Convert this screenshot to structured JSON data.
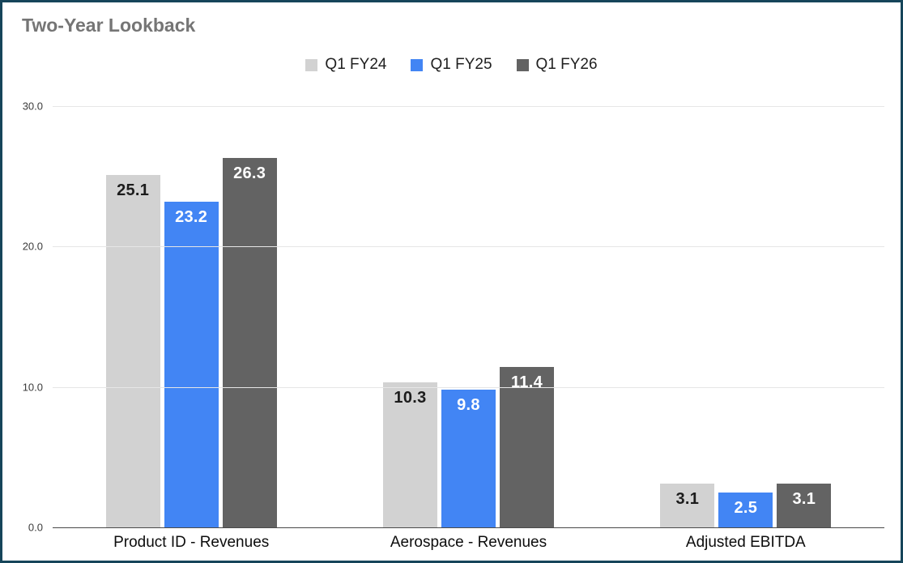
{
  "header": {
    "title": "Two-Year Lookback"
  },
  "colors": {
    "border": "#16455a",
    "title": "#757575",
    "grid": "#e6e6e6",
    "axis": "#4a4a4a",
    "tick_text": "#3c3c3c",
    "category_text": "#0d0d0d",
    "legend_text": "#1f1f1f"
  },
  "chart_data": {
    "type": "bar",
    "title": "Two-Year Lookback",
    "categories": [
      "Product ID - Revenues",
      "Aerospace - Revenues",
      "Adjusted EBITDA"
    ],
    "series": [
      {
        "name": "Q1 FY24",
        "color": "#d2d2d2",
        "label_color": "#1c1c1c",
        "values": [
          25.1,
          10.3,
          3.1
        ]
      },
      {
        "name": "Q1 FY25",
        "color": "#4285f4",
        "label_color": "#ffffff",
        "values": [
          23.2,
          9.8,
          2.5
        ]
      },
      {
        "name": "Q1 FY26",
        "color": "#636363",
        "label_color": "#ffffff",
        "values": [
          26.3,
          11.4,
          3.1
        ]
      }
    ],
    "y_ticks": [
      0,
      10,
      20,
      30
    ],
    "y_tick_labels": [
      "0.0",
      "10.0",
      "20.0",
      "30.0"
    ],
    "ylim": [
      0,
      30
    ],
    "xlabel": "",
    "ylabel": "",
    "grid": true,
    "legend_position": "top"
  }
}
